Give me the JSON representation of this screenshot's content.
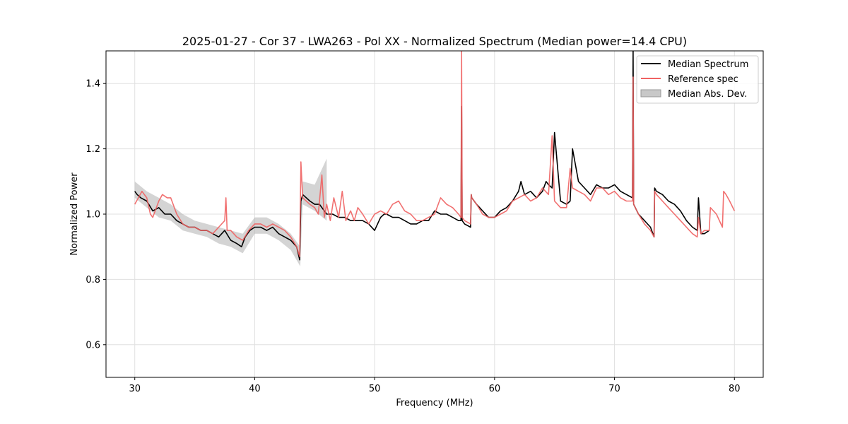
{
  "chart_data": {
    "type": "line",
    "title": "2025-01-27 - Cor 37 - LWA263 - Pol XX - Normalized Spectrum (Median power=14.4 CPU)",
    "xlabel": "Frequency (MHz)",
    "ylabel": "Normalized Power",
    "xlim": [
      27.6,
      82.4
    ],
    "ylim": [
      0.5,
      1.5
    ],
    "xticks": [
      30,
      40,
      50,
      60,
      70,
      80
    ],
    "yticks": [
      0.6,
      0.8,
      1.0,
      1.2,
      1.4
    ],
    "xtick_labels": [
      "30",
      "40",
      "50",
      "60",
      "70",
      "80"
    ],
    "ytick_labels": [
      "0.6",
      "0.8",
      "1.0",
      "1.2",
      "1.4"
    ],
    "grid": true,
    "legend_position": "top-right",
    "legend": [
      "Median Spectrum",
      "Reference spec",
      "Median Abs. Dev."
    ],
    "series": [
      {
        "name": "Median Spectrum",
        "color": "#000000",
        "x": [
          30.0,
          30.2,
          30.5,
          31.0,
          31.5,
          32.0,
          32.5,
          33.0,
          33.5,
          34.0,
          34.5,
          35.0,
          35.5,
          36.0,
          36.5,
          37.0,
          37.5,
          38.0,
          38.5,
          38.9,
          39.2,
          39.6,
          40.0,
          40.5,
          41.0,
          41.5,
          42.0,
          42.5,
          43.0,
          43.5,
          43.75,
          43.85,
          44.0,
          44.3,
          44.6,
          45.0,
          45.4,
          45.8,
          46.0,
          46.5,
          47.0,
          47.5,
          48.0,
          48.5,
          49.0,
          49.5,
          50.0,
          50.5,
          50.8,
          51.0,
          51.5,
          52.0,
          52.5,
          53.0,
          53.5,
          54.0,
          54.5,
          55.0,
          55.5,
          56.0,
          56.5,
          57.0,
          57.2,
          57.25,
          57.3,
          57.5,
          58.0,
          58.05,
          58.1,
          58.5,
          59.0,
          59.5,
          60.0,
          60.5,
          61.0,
          61.5,
          62.0,
          62.2,
          62.5,
          63.0,
          63.5,
          64.0,
          64.3,
          64.5,
          64.8,
          65.0,
          65.5,
          66.0,
          66.3,
          66.5,
          67.0,
          67.5,
          68.0,
          68.5,
          69.0,
          69.5,
          70.0,
          70.5,
          71.0,
          71.5,
          71.55,
          71.6,
          72.0,
          72.5,
          73.0,
          73.3,
          73.35,
          73.5,
          74.0,
          74.5,
          75.0,
          75.5,
          76.0,
          76.5,
          76.9,
          77.0,
          77.2,
          77.5,
          77.9
        ],
        "values": [
          1.07,
          1.06,
          1.05,
          1.04,
          1.01,
          1.02,
          1.0,
          1.0,
          0.98,
          0.97,
          0.96,
          0.96,
          0.95,
          0.95,
          0.94,
          0.93,
          0.95,
          0.92,
          0.91,
          0.9,
          0.93,
          0.95,
          0.96,
          0.96,
          0.95,
          0.96,
          0.94,
          0.93,
          0.92,
          0.9,
          0.86,
          1.04,
          1.06,
          1.05,
          1.04,
          1.03,
          1.03,
          1.01,
          1.0,
          1.0,
          0.99,
          0.99,
          0.98,
          0.98,
          0.98,
          0.97,
          0.95,
          0.99,
          1.0,
          1.0,
          0.99,
          0.99,
          0.98,
          0.97,
          0.97,
          0.98,
          0.98,
          1.01,
          1.0,
          1.0,
          0.99,
          0.98,
          0.98,
          1.33,
          0.98,
          0.97,
          0.96,
          1.06,
          1.05,
          1.03,
          1.01,
          0.99,
          0.99,
          1.01,
          1.02,
          1.04,
          1.07,
          1.1,
          1.06,
          1.07,
          1.05,
          1.07,
          1.1,
          1.09,
          1.08,
          1.25,
          1.04,
          1.03,
          1.04,
          1.2,
          1.1,
          1.08,
          1.06,
          1.09,
          1.08,
          1.08,
          1.09,
          1.07,
          1.06,
          1.05,
          1.5,
          1.03,
          1.0,
          0.98,
          0.96,
          0.93,
          1.08,
          1.07,
          1.06,
          1.04,
          1.03,
          1.01,
          0.98,
          0.96,
          0.95,
          1.05,
          0.94,
          0.94,
          0.95
        ]
      },
      {
        "name": "Reference spec",
        "color": "#f06262",
        "x": [
          30.0,
          30.3,
          30.6,
          31.0,
          31.3,
          31.5,
          32.0,
          32.3,
          32.7,
          33.0,
          33.5,
          34.0,
          34.5,
          35.0,
          35.5,
          36.0,
          36.5,
          37.0,
          37.5,
          37.6,
          37.7,
          38.0,
          38.5,
          39.0,
          39.5,
          40.0,
          40.5,
          41.0,
          41.5,
          42.0,
          42.5,
          43.0,
          43.5,
          43.75,
          43.85,
          44.0,
          44.3,
          44.6,
          45.0,
          45.3,
          45.6,
          45.8,
          46.0,
          46.3,
          46.6,
          47.0,
          47.3,
          47.6,
          48.0,
          48.3,
          48.6,
          49.0,
          49.5,
          50.0,
          50.5,
          51.0,
          51.5,
          52.0,
          52.5,
          53.0,
          53.5,
          54.0,
          54.5,
          55.0,
          55.5,
          56.0,
          56.5,
          57.0,
          57.2,
          57.25,
          57.3,
          57.5,
          58.0,
          58.05,
          58.1,
          58.5,
          59.0,
          59.5,
          60.0,
          60.5,
          61.0,
          61.5,
          62.0,
          62.5,
          63.0,
          63.5,
          64.0,
          64.5,
          64.8,
          65.0,
          65.5,
          66.0,
          66.3,
          66.5,
          67.0,
          67.5,
          68.0,
          68.5,
          69.0,
          69.5,
          70.0,
          70.5,
          71.0,
          71.5,
          71.55,
          71.6,
          72.0,
          72.5,
          73.0,
          73.3,
          73.35,
          73.5,
          74.0,
          74.5,
          75.0,
          75.5,
          76.0,
          76.5,
          76.9,
          77.0,
          77.2,
          77.5,
          77.9,
          78.0,
          78.5,
          79.0,
          79.1,
          79.3,
          79.6,
          80.0
        ],
        "values": [
          1.03,
          1.05,
          1.07,
          1.05,
          1.0,
          0.99,
          1.04,
          1.06,
          1.05,
          1.05,
          1.0,
          0.97,
          0.96,
          0.96,
          0.95,
          0.95,
          0.94,
          0.96,
          0.98,
          1.05,
          0.95,
          0.95,
          0.93,
          0.92,
          0.95,
          0.97,
          0.97,
          0.96,
          0.97,
          0.96,
          0.95,
          0.93,
          0.9,
          0.87,
          1.16,
          1.05,
          1.04,
          1.03,
          1.02,
          1.0,
          1.12,
          0.99,
          1.03,
          0.98,
          1.05,
          0.99,
          1.07,
          0.98,
          1.01,
          0.98,
          1.02,
          1.0,
          0.97,
          1.0,
          1.01,
          1.0,
          1.03,
          1.04,
          1.01,
          1.0,
          0.98,
          0.98,
          0.99,
          1.0,
          1.05,
          1.03,
          1.02,
          1.0,
          0.99,
          1.5,
          0.99,
          0.98,
          0.97,
          1.06,
          1.05,
          1.03,
          1.0,
          0.99,
          0.99,
          1.0,
          1.01,
          1.04,
          1.05,
          1.06,
          1.04,
          1.05,
          1.08,
          1.06,
          1.24,
          1.04,
          1.02,
          1.02,
          1.14,
          1.08,
          1.07,
          1.06,
          1.04,
          1.08,
          1.08,
          1.06,
          1.07,
          1.05,
          1.04,
          1.04,
          1.42,
          1.03,
          1.0,
          0.97,
          0.95,
          0.93,
          1.07,
          1.06,
          1.04,
          1.02,
          1.0,
          0.98,
          0.96,
          0.94,
          0.93,
          0.99,
          0.94,
          0.95,
          0.95,
          1.02,
          1.0,
          0.96,
          1.07,
          1.06,
          1.04,
          1.01
        ]
      }
    ],
    "band": {
      "name": "Median Abs. Dev.",
      "color": "#b0b0b0",
      "x": [
        30.0,
        31.0,
        32.0,
        33.0,
        34.0,
        35.0,
        36.0,
        37.0,
        38.0,
        39.0,
        40.0,
        41.0,
        42.0,
        43.0,
        43.8,
        44.0,
        45.0,
        46.0
      ],
      "lower": [
        1.05,
        1.02,
        0.99,
        0.98,
        0.95,
        0.94,
        0.93,
        0.91,
        0.9,
        0.88,
        0.94,
        0.94,
        0.92,
        0.89,
        0.84,
        1.03,
        1.01,
        0.98
      ],
      "upper": [
        1.1,
        1.07,
        1.05,
        1.03,
        1.0,
        0.98,
        0.97,
        0.96,
        0.95,
        0.94,
        0.99,
        0.99,
        0.97,
        0.94,
        0.9,
        1.1,
        1.09,
        1.17
      ]
    }
  }
}
